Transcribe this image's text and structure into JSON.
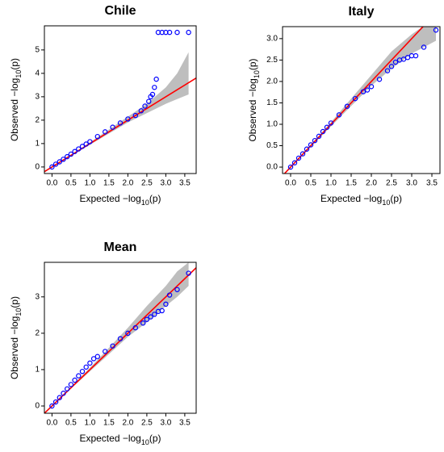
{
  "chart_data": [
    {
      "type": "qq",
      "title": "Chile",
      "xlabel": {
        "main": "Expected −log",
        "sub": "10",
        "tail": "(p)"
      },
      "ylabel": {
        "main": "Observed −log",
        "sub": "10",
        "tail": "(p)"
      },
      "x": [
        0,
        0.1,
        0.2,
        0.3,
        0.4,
        0.5,
        0.6,
        0.7,
        0.8,
        0.9,
        1.0,
        1.2,
        1.4,
        1.6,
        1.8,
        2.0,
        2.2,
        2.35,
        2.45,
        2.55,
        2.6,
        2.65,
        2.7,
        2.75,
        2.8,
        2.9,
        3.0,
        3.1,
        3.3,
        3.6
      ],
      "y": [
        0,
        0.12,
        0.22,
        0.33,
        0.44,
        0.55,
        0.66,
        0.77,
        0.88,
        0.98,
        1.08,
        1.3,
        1.5,
        1.7,
        1.88,
        2.05,
        2.2,
        2.4,
        2.6,
        2.8,
        3.0,
        3.1,
        3.4,
        3.75,
        5.75,
        5.75,
        5.75,
        5.75,
        5.75,
        5.75
      ],
      "band": {
        "x": [
          0,
          1,
          2,
          2.5,
          3,
          3.3,
          3.6
        ],
        "lower": [
          0,
          0.95,
          1.9,
          2.3,
          2.7,
          2.9,
          3.1
        ],
        "upper": [
          0,
          1.05,
          2.15,
          2.7,
          3.4,
          4.0,
          4.9
        ]
      },
      "reference_line": {
        "x": [
          -0.2,
          3.8
        ],
        "y": [
          -0.2,
          3.8
        ]
      },
      "point_color": "#0000ff",
      "line_color": "#ff0000",
      "band_color": "#bebebe",
      "xlim": [
        -0.2,
        3.8
      ],
      "ylim": [
        -0.28,
        6.03
      ],
      "xticks": [
        {
          "value": 0,
          "label": "0.0"
        },
        {
          "value": 0.5,
          "label": "0.5"
        },
        {
          "value": 1,
          "label": "1.0"
        },
        {
          "value": 1.5,
          "label": "1.5"
        },
        {
          "value": 2,
          "label": "2.0"
        },
        {
          "value": 2.5,
          "label": "2.5"
        },
        {
          "value": 3,
          "label": "3.0"
        },
        {
          "value": 3.5,
          "label": "3.5"
        }
      ],
      "yticks": [
        0,
        1,
        2,
        3,
        4,
        5
      ]
    },
    {
      "type": "qq",
      "title": "Italy",
      "xlabel": {
        "main": "Expected −log",
        "sub": "10",
        "tail": "(p)"
      },
      "ylabel": {
        "main": "Observed −log",
        "sub": "10",
        "tail": "(p)"
      },
      "x": [
        0,
        0.1,
        0.2,
        0.3,
        0.4,
        0.5,
        0.6,
        0.7,
        0.8,
        0.9,
        1.0,
        1.2,
        1.4,
        1.6,
        1.8,
        1.9,
        2.0,
        2.2,
        2.4,
        2.5,
        2.6,
        2.7,
        2.8,
        2.9,
        3.0,
        3.1,
        3.3,
        3.6
      ],
      "y": [
        0,
        0.1,
        0.21,
        0.31,
        0.42,
        0.52,
        0.62,
        0.72,
        0.83,
        0.93,
        1.03,
        1.22,
        1.42,
        1.6,
        1.76,
        1.8,
        1.88,
        2.05,
        2.25,
        2.35,
        2.45,
        2.5,
        2.52,
        2.56,
        2.6,
        2.6,
        2.8,
        3.2
      ],
      "band": {
        "x": [
          0,
          1,
          2,
          2.5,
          3,
          3.3,
          3.6
        ],
        "lower": [
          0,
          0.95,
          1.9,
          2.3,
          2.65,
          2.8,
          2.95
        ],
        "upper": [
          0,
          1.05,
          2.15,
          2.7,
          3.1,
          3.3,
          3.3
        ]
      },
      "reference_line": {
        "x": [
          -0.2,
          3.3
        ],
        "y": [
          -0.2,
          3.3
        ]
      },
      "point_color": "#0000ff",
      "line_color": "#ff0000",
      "band_color": "#bebebe",
      "xlim": [
        -0.2,
        3.7
      ],
      "ylim": [
        -0.15,
        3.28
      ],
      "xticks": [
        {
          "value": 0,
          "label": "0.0"
        },
        {
          "value": 0.5,
          "label": "0.5"
        },
        {
          "value": 1,
          "label": "1.0"
        },
        {
          "value": 1.5,
          "label": "1.5"
        },
        {
          "value": 2,
          "label": "2.0"
        },
        {
          "value": 2.5,
          "label": "2.5"
        },
        {
          "value": 3,
          "label": "3.0"
        },
        {
          "value": 3.5,
          "label": "3.5"
        }
      ],
      "yticks": [
        {
          "value": 0,
          "label": "0.0"
        },
        {
          "value": 0.5,
          "label": "0.5"
        },
        {
          "value": 1,
          "label": "1.0"
        },
        {
          "value": 1.5,
          "label": "1.5"
        },
        {
          "value": 2,
          "label": "2.0"
        },
        {
          "value": 2.5,
          "label": "2.5"
        },
        {
          "value": 3,
          "label": "3.0"
        }
      ]
    },
    {
      "type": "qq",
      "title": "Mean",
      "xlabel": {
        "main": "Expected −log",
        "sub": "10",
        "tail": "(p)"
      },
      "ylabel": {
        "main": "Observed −log",
        "sub": "10",
        "tail": "(p)"
      },
      "x": [
        0,
        0.1,
        0.2,
        0.3,
        0.4,
        0.5,
        0.6,
        0.7,
        0.8,
        0.9,
        1.0,
        1.1,
        1.2,
        1.4,
        1.6,
        1.8,
        2.0,
        2.2,
        2.4,
        2.5,
        2.6,
        2.7,
        2.8,
        2.9,
        3.0,
        3.1,
        3.3,
        3.6
      ],
      "y": [
        0,
        0.11,
        0.23,
        0.35,
        0.47,
        0.59,
        0.71,
        0.83,
        0.95,
        1.07,
        1.18,
        1.3,
        1.36,
        1.5,
        1.65,
        1.85,
        2.0,
        2.15,
        2.28,
        2.38,
        2.45,
        2.52,
        2.6,
        2.62,
        2.8,
        3.05,
        3.2,
        3.65
      ],
      "band": {
        "x": [
          0,
          1,
          2,
          2.5,
          3,
          3.3,
          3.6
        ],
        "lower": [
          0,
          0.95,
          1.9,
          2.3,
          2.75,
          3.0,
          3.3
        ],
        "upper": [
          0,
          1.05,
          2.15,
          2.75,
          3.3,
          3.7,
          3.95
        ]
      },
      "reference_line": {
        "x": [
          -0.2,
          3.8
        ],
        "y": [
          -0.2,
          3.8
        ]
      },
      "point_color": "#0000ff",
      "line_color": "#ff0000",
      "band_color": "#bebebe",
      "xlim": [
        -0.2,
        3.8
      ],
      "ylim": [
        -0.2,
        3.95
      ],
      "xticks": [
        {
          "value": 0,
          "label": "0.0"
        },
        {
          "value": 0.5,
          "label": "0.5"
        },
        {
          "value": 1,
          "label": "1.0"
        },
        {
          "value": 1.5,
          "label": "1.5"
        },
        {
          "value": 2,
          "label": "2.0"
        },
        {
          "value": 2.5,
          "label": "2.5"
        },
        {
          "value": 3,
          "label": "3.0"
        },
        {
          "value": 3.5,
          "label": "3.5"
        }
      ],
      "yticks": [
        0,
        1,
        2,
        3
      ]
    }
  ]
}
